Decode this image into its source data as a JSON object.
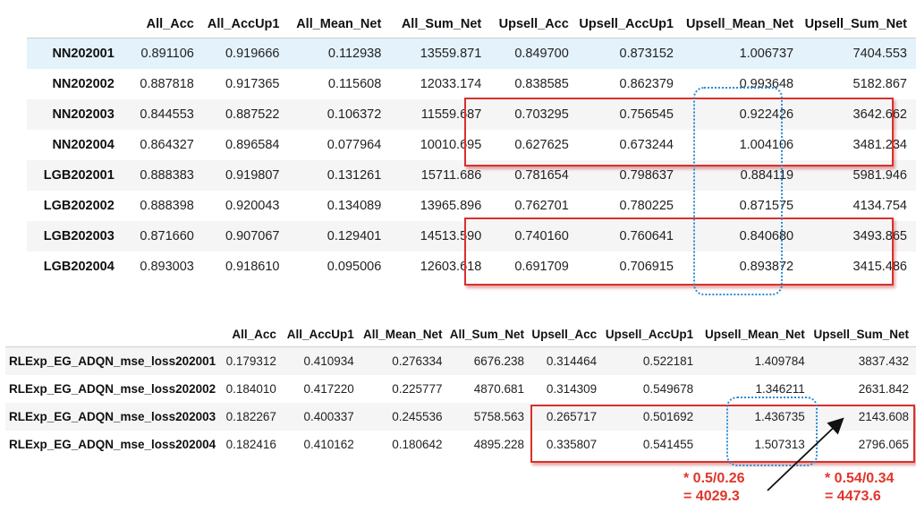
{
  "table1": {
    "columns": [
      "",
      "All_Acc",
      "All_AccUp1",
      "All_Mean_Net",
      "All_Sum_Net",
      "Upsell_Acc",
      "Upsell_AccUp1",
      "Upsell_Mean_Net",
      "Upsell_Sum_Net"
    ],
    "rows": [
      [
        "NN202001",
        "0.891106",
        "0.919666",
        "0.112938",
        "13559.871",
        "0.849700",
        "0.873152",
        "1.006737",
        "7404.553"
      ],
      [
        "NN202002",
        "0.887818",
        "0.917365",
        "0.115608",
        "12033.174",
        "0.838585",
        "0.862379",
        "0.993648",
        "5182.867"
      ],
      [
        "NN202003",
        "0.844553",
        "0.887522",
        "0.106372",
        "11559.687",
        "0.703295",
        "0.756545",
        "0.922426",
        "3642.662"
      ],
      [
        "NN202004",
        "0.864327",
        "0.896584",
        "0.077964",
        "10010.695",
        "0.627625",
        "0.673244",
        "1.004106",
        "3481.234"
      ],
      [
        "LGB202001",
        "0.888383",
        "0.919807",
        "0.131261",
        "15711.686",
        "0.781654",
        "0.798637",
        "0.884119",
        "5981.946"
      ],
      [
        "LGB202002",
        "0.888398",
        "0.920043",
        "0.134089",
        "13965.896",
        "0.762701",
        "0.780225",
        "0.871575",
        "4134.754"
      ],
      [
        "LGB202003",
        "0.871660",
        "0.907067",
        "0.129401",
        "14513.590",
        "0.740160",
        "0.760641",
        "0.840680",
        "3493.865"
      ],
      [
        "LGB202004",
        "0.893003",
        "0.918610",
        "0.095006",
        "12603.618",
        "0.691709",
        "0.706915",
        "0.893872",
        "3415.486"
      ]
    ]
  },
  "table2": {
    "columns": [
      "",
      "All_Acc",
      "All_AccUp1",
      "All_Mean_Net",
      "All_Sum_Net",
      "Upsell_Acc",
      "Upsell_AccUp1",
      "Upsell_Mean_Net",
      "Upsell_Sum_Net"
    ],
    "rows": [
      [
        "RLExp_EG_ADQN_mse_loss202001",
        "0.179312",
        "0.410934",
        "0.276334",
        "6676.238",
        "0.314464",
        "0.522181",
        "1.409784",
        "3837.432"
      ],
      [
        "RLExp_EG_ADQN_mse_loss202002",
        "0.184010",
        "0.417220",
        "0.225777",
        "4870.681",
        "0.314309",
        "0.549678",
        "1.346211",
        "2631.842"
      ],
      [
        "RLExp_EG_ADQN_mse_loss202003",
        "0.182267",
        "0.400337",
        "0.245536",
        "5758.563",
        "0.265717",
        "0.501692",
        "1.436735",
        "2143.608"
      ],
      [
        "RLExp_EG_ADQN_mse_loss202004",
        "0.182416",
        "0.410162",
        "0.180642",
        "4895.228",
        "0.335807",
        "0.541455",
        "1.507313",
        "2796.065"
      ]
    ]
  },
  "annotations": {
    "note_left": "* 0.5/0.26\n= 4029.3",
    "note_right": "* 0.54/0.34\n= 4473.6"
  },
  "colors": {
    "highlight_row": "#e3f2fb",
    "red_box": "#d9302b",
    "blue_box": "#2a8bd6",
    "note_text": "#e0352b"
  }
}
